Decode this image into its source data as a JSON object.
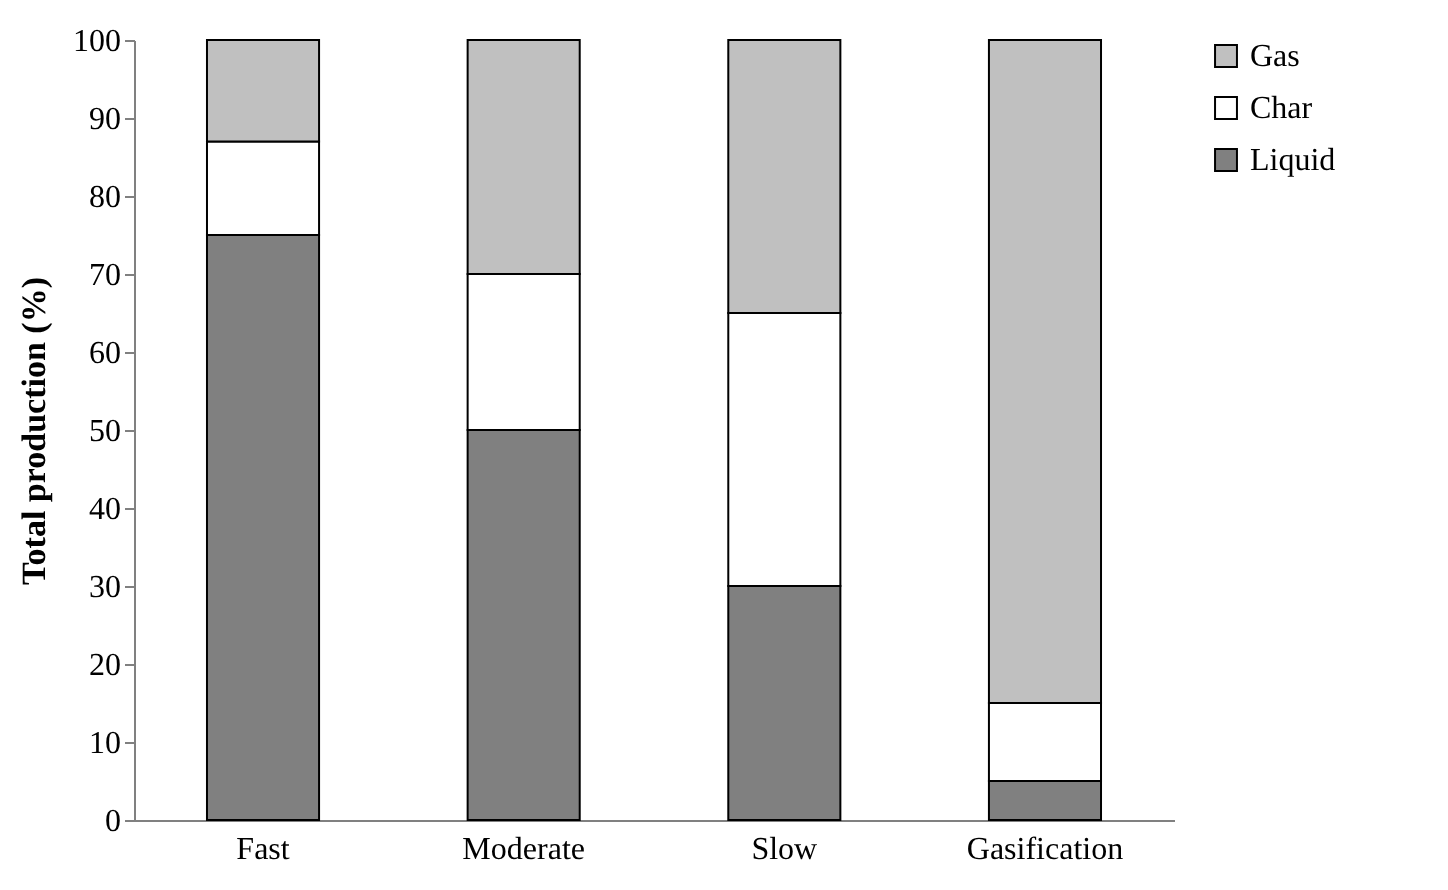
{
  "chart_data": {
    "type": "bar",
    "ylabel": "Total production (%)",
    "categories": [
      "Fast",
      "Moderate",
      "Slow",
      "Gasification"
    ],
    "stacked": true,
    "series": [
      {
        "name": "Liquid",
        "color": "#808080",
        "values": [
          75,
          50,
          30,
          5
        ]
      },
      {
        "name": "Char",
        "color": "#ffffff",
        "values": [
          12,
          20,
          35,
          10
        ]
      },
      {
        "name": "Gas",
        "color": "#c0c0c0",
        "values": [
          13,
          30,
          35,
          85
        ]
      }
    ],
    "ylim": [
      0,
      100
    ],
    "yticks": [
      0,
      10,
      20,
      30,
      40,
      50,
      60,
      70,
      80,
      90,
      100
    ],
    "grid": false,
    "legend": "right"
  }
}
